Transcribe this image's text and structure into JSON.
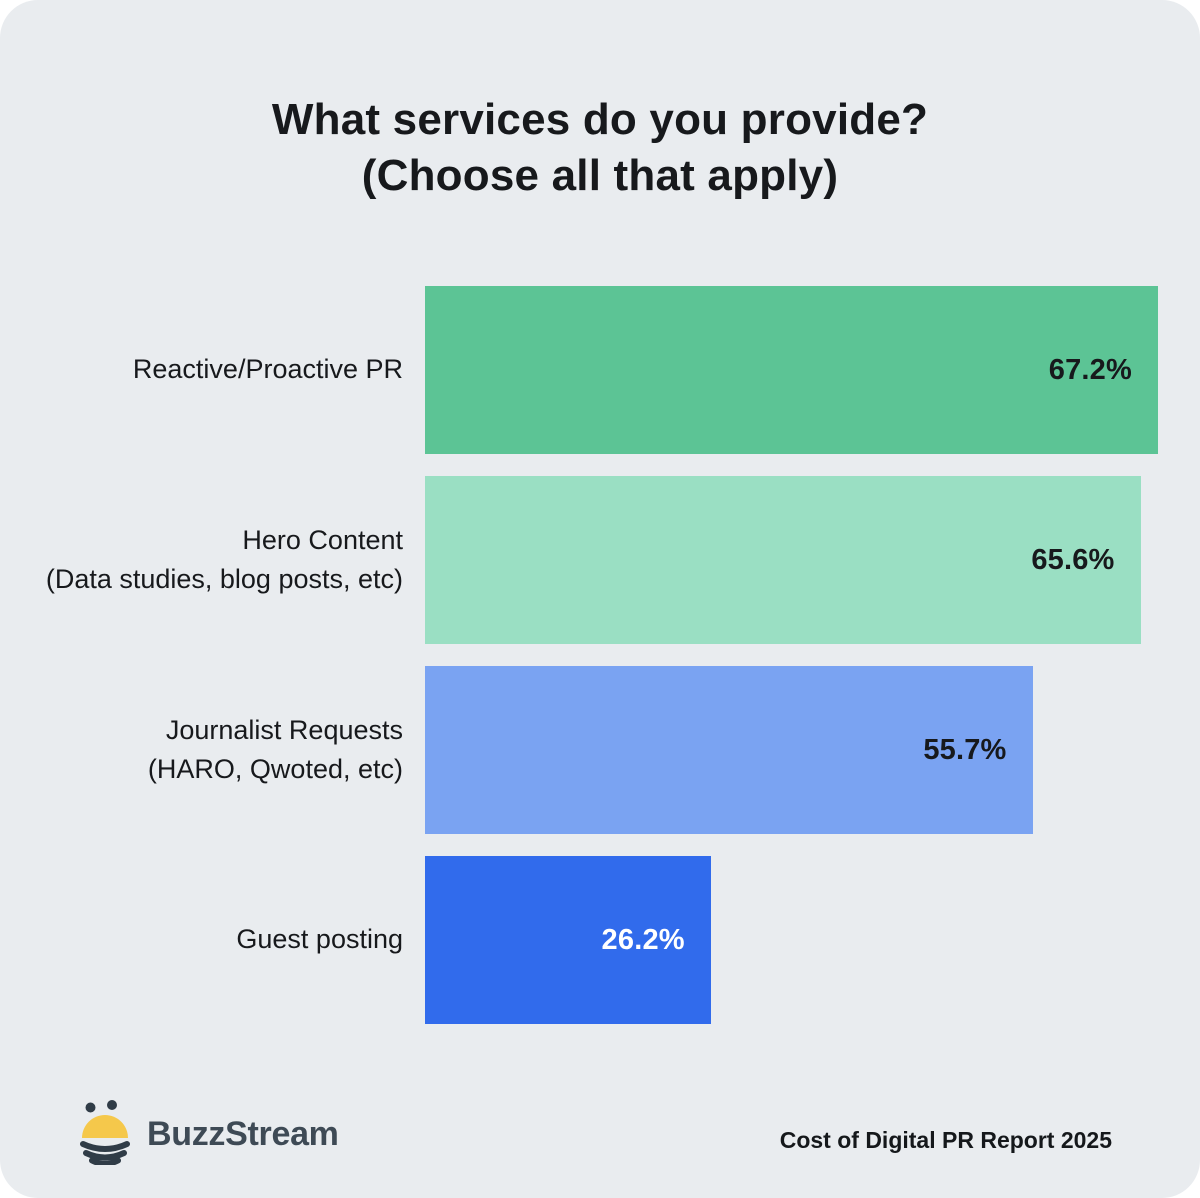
{
  "title": {
    "line1": "What services do you provide?",
    "line2": "(Choose all that apply)"
  },
  "chart_data": {
    "type": "bar",
    "orientation": "horizontal",
    "title": "What services do you provide? (Choose all that apply)",
    "categories": [
      "Reactive/Proactive PR",
      "Hero Content (Data studies, blog posts, etc)",
      "Journalist Requests (HARO, Qwoted, etc)",
      "Guest posting"
    ],
    "values": [
      67.2,
      65.6,
      55.7,
      26.2
    ],
    "value_labels": [
      "67.2%",
      "65.6%",
      "55.7%",
      "26.2%"
    ],
    "xlim": [
      0,
      67.2
    ],
    "grid": false,
    "legend": false,
    "value_label_position": "inside-end"
  },
  "bars": [
    {
      "label": "Reactive/Proactive PR",
      "sublabel": "",
      "value": 67.2,
      "value_label": "67.2%",
      "color": "#5CC495",
      "value_color": "#17191C"
    },
    {
      "label": "Hero Content",
      "sublabel": "(Data studies, blog posts, etc)",
      "value": 65.6,
      "value_label": "65.6%",
      "color": "#9ADFC3",
      "value_color": "#17191C"
    },
    {
      "label": "Journalist Requests",
      "sublabel": "(HARO, Qwoted, etc)",
      "value": 55.7,
      "value_label": "55.7%",
      "color": "#7AA3F2",
      "value_color": "#17191C"
    },
    {
      "label": "Guest posting",
      "sublabel": "",
      "value": 26.2,
      "value_label": "26.2%",
      "color": "#316BEC",
      "value_color": "#FFFFFF"
    }
  ],
  "footer": {
    "brand": "BuzzStream",
    "source": "Cost of Digital PR Report 2025"
  },
  "icons": {
    "brand_icon": "bee-icon"
  },
  "colors": {
    "background": "#E9ECEF",
    "page": "#FFFFFF",
    "text": "#17191C",
    "brand_text": "#3E4A55",
    "bee_yellow": "#F5C84B",
    "bee_dark": "#303C47"
  }
}
